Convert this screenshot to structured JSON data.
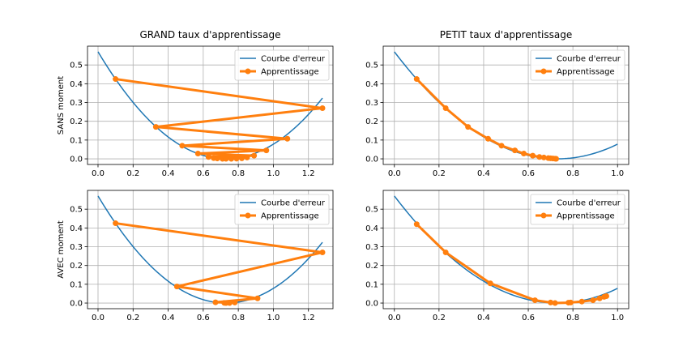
{
  "figure": {
    "legend_labels": {
      "curve": "Courbe d'erreur",
      "learning": "Apprentissage"
    },
    "colors": {
      "curve": "#1f77b4",
      "learning": "#ff7f0e",
      "grid": "#b0b0b0"
    },
    "legend_placement": "upper right",
    "grid": true
  },
  "chart_data": [
    {
      "type": "line",
      "title": "GRAND taux d'apprentissage",
      "ylabel": "SANS moment",
      "xlim": [
        -0.06,
        1.34
      ],
      "ylim": [
        -0.03,
        0.6
      ],
      "xticks": [
        0.0,
        0.2,
        0.4,
        0.6,
        0.8,
        1.0,
        1.2
      ],
      "xtick_labels": [
        "0.0",
        "0.2",
        "0.4",
        "0.6",
        "0.8",
        "1.0",
        "1.2"
      ],
      "yticks": [
        0.0,
        0.1,
        0.2,
        0.3,
        0.4,
        0.5
      ],
      "ytick_labels": [
        "0.0",
        "0.1",
        "0.2",
        "0.3",
        "0.4",
        "0.5"
      ],
      "series": [
        {
          "name": "Courbe d'erreur",
          "curve": {
            "a": 1.07,
            "min_x": 0.73,
            "x_range": [
              0.0,
              1.28
            ]
          }
        },
        {
          "name": "Apprentissage",
          "points": [
            [
              0.1,
              0.425
            ],
            [
              1.28,
              0.27
            ],
            [
              0.33,
              0.17
            ],
            [
              1.08,
              0.107
            ],
            [
              0.48,
              0.07
            ],
            [
              0.96,
              0.045
            ],
            [
              0.57,
              0.028
            ],
            [
              0.89,
              0.017
            ],
            [
              0.63,
              0.01
            ],
            [
              0.85,
              0.007
            ],
            [
              0.66,
              0.004
            ],
            [
              0.82,
              0.003
            ],
            [
              0.68,
              0.002
            ],
            [
              0.79,
              0.001
            ],
            [
              0.71,
              0.0
            ],
            [
              0.76,
              0.0
            ],
            [
              0.73,
              0.0
            ]
          ]
        }
      ]
    },
    {
      "type": "line",
      "title": "PETIT taux d'apprentissage",
      "ylabel": "",
      "xlim": [
        -0.05,
        1.05
      ],
      "ylim": [
        -0.03,
        0.6
      ],
      "xticks": [
        0.0,
        0.2,
        0.4,
        0.6,
        0.8,
        1.0
      ],
      "xtick_labels": [
        "0.0",
        "0.2",
        "0.4",
        "0.6",
        "0.8",
        "1.0"
      ],
      "yticks": [
        0.0,
        0.1,
        0.2,
        0.3,
        0.4,
        0.5
      ],
      "ytick_labels": [
        "0.0",
        "0.1",
        "0.2",
        "0.3",
        "0.4",
        "0.5"
      ],
      "series": [
        {
          "name": "Courbe d'erreur",
          "curve": {
            "a": 1.07,
            "min_x": 0.73,
            "x_range": [
              0.0,
              1.0
            ]
          }
        },
        {
          "name": "Apprentissage",
          "points": [
            [
              0.1,
              0.425
            ],
            [
              0.23,
              0.27
            ],
            [
              0.33,
              0.17
            ],
            [
              0.42,
              0.107
            ],
            [
              0.48,
              0.07
            ],
            [
              0.54,
              0.045
            ],
            [
              0.58,
              0.028
            ],
            [
              0.62,
              0.017
            ],
            [
              0.65,
              0.01
            ],
            [
              0.67,
              0.007
            ],
            [
              0.69,
              0.004
            ],
            [
              0.7,
              0.003
            ],
            [
              0.71,
              0.002
            ],
            [
              0.72,
              0.001
            ],
            [
              0.725,
              0.0
            ]
          ]
        }
      ]
    },
    {
      "type": "line",
      "title": "",
      "ylabel": "AVEC moment",
      "xlim": [
        -0.06,
        1.34
      ],
      "ylim": [
        -0.03,
        0.6
      ],
      "xticks": [
        0.0,
        0.2,
        0.4,
        0.6,
        0.8,
        1.0,
        1.2
      ],
      "xtick_labels": [
        "0.0",
        "0.2",
        "0.4",
        "0.6",
        "0.8",
        "1.0",
        "1.2"
      ],
      "yticks": [
        0.0,
        0.1,
        0.2,
        0.3,
        0.4,
        0.5
      ],
      "ytick_labels": [
        "0.0",
        "0.1",
        "0.2",
        "0.3",
        "0.4",
        "0.5"
      ],
      "series": [
        {
          "name": "Courbe d'erreur",
          "curve": {
            "a": 1.07,
            "min_x": 0.73,
            "x_range": [
              0.0,
              1.28
            ]
          }
        },
        {
          "name": "Apprentissage",
          "points": [
            [
              0.1,
              0.425
            ],
            [
              1.28,
              0.27
            ],
            [
              0.45,
              0.088
            ],
            [
              0.91,
              0.025
            ],
            [
              0.67,
              0.004
            ],
            [
              0.78,
              0.003
            ],
            [
              0.72,
              0.001
            ],
            [
              0.75,
              0.0
            ],
            [
              0.73,
              0.0
            ]
          ]
        }
      ]
    },
    {
      "type": "line",
      "title": "",
      "ylabel": "",
      "xlim": [
        -0.05,
        1.05
      ],
      "ylim": [
        -0.03,
        0.6
      ],
      "xticks": [
        0.0,
        0.2,
        0.4,
        0.6,
        0.8,
        1.0
      ],
      "xtick_labels": [
        "0.0",
        "0.2",
        "0.4",
        "0.6",
        "0.8",
        "1.0"
      ],
      "yticks": [
        0.0,
        0.1,
        0.2,
        0.3,
        0.4,
        0.5
      ],
      "ytick_labels": [
        "0.0",
        "0.1",
        "0.2",
        "0.3",
        "0.4",
        "0.5"
      ],
      "series": [
        {
          "name": "Courbe d'erreur",
          "curve": {
            "a": 1.07,
            "min_x": 0.73,
            "x_range": [
              0.0,
              1.0
            ]
          }
        },
        {
          "name": "Apprentissage",
          "points": [
            [
              0.1,
              0.42
            ],
            [
              0.23,
              0.27
            ],
            [
              0.43,
              0.105
            ],
            [
              0.63,
              0.015
            ],
            [
              0.7,
              0.003
            ],
            [
              0.72,
              0.0
            ],
            [
              0.78,
              0.002
            ],
            [
              0.79,
              0.003
            ],
            [
              0.84,
              0.008
            ],
            [
              0.89,
              0.015
            ],
            [
              0.92,
              0.025
            ],
            [
              0.94,
              0.033
            ],
            [
              0.95,
              0.037
            ]
          ]
        }
      ]
    }
  ]
}
